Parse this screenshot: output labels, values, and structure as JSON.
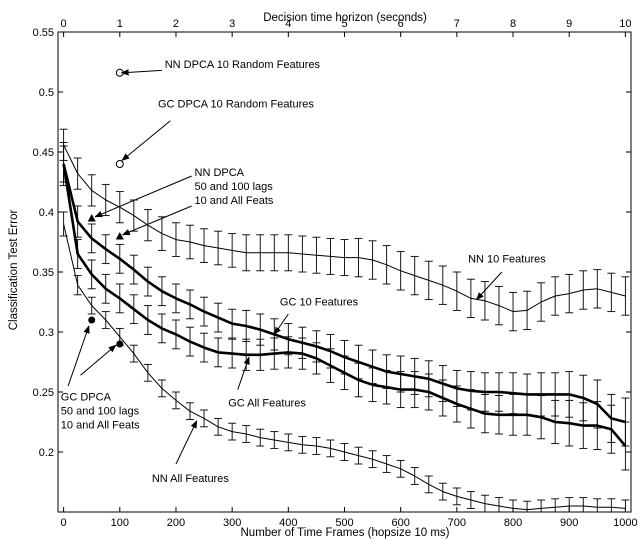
{
  "chart_data": {
    "type": "line",
    "title": "",
    "xlabel": "Number of Time Frames (hopsize 10 ms)",
    "ylabel": "Classification Test Error",
    "x2label": "Decision time horizon (seconds)",
    "xlim": [
      -10,
      1010
    ],
    "ylim": [
      0.15,
      0.55
    ],
    "x2lim": [
      -0.1,
      10.1
    ],
    "xticks": [
      0,
      100,
      200,
      300,
      400,
      500,
      600,
      700,
      800,
      900,
      1000
    ],
    "yticks": [
      0.2,
      0.25,
      0.3,
      0.35,
      0.4,
      0.45,
      0.5,
      0.55
    ],
    "x2ticks": [
      0,
      1,
      2,
      3,
      4,
      5,
      6,
      7,
      8,
      9,
      10
    ],
    "grid": false,
    "legend": "none",
    "series": [
      {
        "name": "NN 10 Features",
        "style": "thin",
        "x": [
          0,
          25,
          50,
          75,
          100,
          125,
          150,
          175,
          200,
          225,
          250,
          275,
          300,
          325,
          350,
          375,
          400,
          425,
          450,
          475,
          500,
          525,
          550,
          575,
          600,
          625,
          650,
          675,
          700,
          725,
          750,
          775,
          800,
          825,
          850,
          875,
          900,
          925,
          950,
          975,
          1000
        ],
        "y": [
          0.456,
          0.432,
          0.418,
          0.41,
          0.404,
          0.397,
          0.389,
          0.382,
          0.377,
          0.375,
          0.372,
          0.37,
          0.368,
          0.366,
          0.366,
          0.366,
          0.366,
          0.365,
          0.364,
          0.363,
          0.362,
          0.362,
          0.36,
          0.356,
          0.351,
          0.347,
          0.343,
          0.339,
          0.334,
          0.328,
          0.326,
          0.322,
          0.317,
          0.318,
          0.325,
          0.33,
          0.332,
          0.335,
          0.336,
          0.333,
          0.33
        ],
        "err": [
          0.013,
          0.013,
          0.013,
          0.013,
          0.013,
          0.013,
          0.013,
          0.014,
          0.014,
          0.014,
          0.014,
          0.014,
          0.014,
          0.015,
          0.015,
          0.015,
          0.015,
          0.015,
          0.015,
          0.015,
          0.015,
          0.016,
          0.016,
          0.016,
          0.016,
          0.016,
          0.016,
          0.016,
          0.016,
          0.016,
          0.016,
          0.016,
          0.016,
          0.016,
          0.016,
          0.016,
          0.016,
          0.016,
          0.016,
          0.016,
          0.016
        ]
      },
      {
        "name": "GC 10 Features",
        "style": "thick",
        "x": [
          0,
          25,
          50,
          75,
          100,
          125,
          150,
          175,
          200,
          225,
          250,
          275,
          300,
          325,
          350,
          375,
          400,
          425,
          450,
          475,
          500,
          525,
          550,
          575,
          600,
          625,
          650,
          675,
          700,
          725,
          750,
          775,
          800,
          825,
          850,
          875,
          900,
          925,
          950,
          975,
          1000
        ],
        "y": [
          0.44,
          0.392,
          0.378,
          0.369,
          0.361,
          0.352,
          0.342,
          0.334,
          0.328,
          0.323,
          0.317,
          0.312,
          0.307,
          0.305,
          0.302,
          0.298,
          0.294,
          0.291,
          0.288,
          0.284,
          0.279,
          0.275,
          0.271,
          0.267,
          0.265,
          0.263,
          0.261,
          0.257,
          0.253,
          0.251,
          0.25,
          0.25,
          0.249,
          0.248,
          0.248,
          0.248,
          0.248,
          0.245,
          0.24,
          0.228,
          0.225
        ],
        "err": [
          0.015,
          0.013,
          0.012,
          0.012,
          0.012,
          0.012,
          0.012,
          0.012,
          0.012,
          0.012,
          0.012,
          0.012,
          0.012,
          0.013,
          0.013,
          0.013,
          0.013,
          0.013,
          0.013,
          0.014,
          0.014,
          0.014,
          0.014,
          0.014,
          0.015,
          0.015,
          0.015,
          0.015,
          0.015,
          0.016,
          0.016,
          0.016,
          0.017,
          0.017,
          0.018,
          0.018,
          0.019,
          0.019,
          0.02,
          0.02,
          0.02
        ]
      },
      {
        "name": "GC All Features",
        "style": "thick",
        "x": [
          0,
          25,
          50,
          75,
          100,
          125,
          150,
          175,
          200,
          225,
          250,
          275,
          300,
          325,
          350,
          375,
          400,
          425,
          450,
          475,
          500,
          525,
          550,
          575,
          600,
          625,
          650,
          675,
          700,
          725,
          750,
          775,
          800,
          825,
          850,
          875,
          900,
          925,
          950,
          975,
          1000
        ],
        "y": [
          0.44,
          0.365,
          0.348,
          0.336,
          0.328,
          0.319,
          0.31,
          0.303,
          0.298,
          0.292,
          0.287,
          0.283,
          0.282,
          0.281,
          0.281,
          0.282,
          0.283,
          0.282,
          0.278,
          0.272,
          0.266,
          0.26,
          0.256,
          0.254,
          0.252,
          0.252,
          0.25,
          0.245,
          0.24,
          0.236,
          0.232,
          0.231,
          0.231,
          0.231,
          0.229,
          0.225,
          0.224,
          0.222,
          0.222,
          0.219,
          0.205
        ],
        "err": [
          0.018,
          0.012,
          0.012,
          0.012,
          0.012,
          0.012,
          0.012,
          0.012,
          0.012,
          0.012,
          0.012,
          0.012,
          0.012,
          0.013,
          0.013,
          0.013,
          0.013,
          0.013,
          0.013,
          0.014,
          0.014,
          0.014,
          0.014,
          0.014,
          0.015,
          0.015,
          0.015,
          0.015,
          0.015,
          0.016,
          0.016,
          0.016,
          0.017,
          0.017,
          0.018,
          0.018,
          0.019,
          0.019,
          0.02,
          0.02,
          0.02
        ]
      },
      {
        "name": "NN All Features",
        "style": "thin",
        "x": [
          0,
          25,
          50,
          75,
          100,
          125,
          150,
          175,
          200,
          225,
          250,
          275,
          300,
          325,
          350,
          375,
          400,
          425,
          450,
          475,
          500,
          525,
          550,
          575,
          600,
          625,
          650,
          675,
          700,
          725,
          750,
          775,
          800,
          825,
          850,
          875,
          900,
          925,
          950,
          975,
          1000
        ],
        "y": [
          0.39,
          0.339,
          0.322,
          0.31,
          0.296,
          0.282,
          0.266,
          0.253,
          0.243,
          0.234,
          0.228,
          0.221,
          0.217,
          0.215,
          0.212,
          0.21,
          0.208,
          0.206,
          0.205,
          0.203,
          0.2,
          0.197,
          0.194,
          0.19,
          0.186,
          0.18,
          0.173,
          0.167,
          0.163,
          0.16,
          0.157,
          0.155,
          0.153,
          0.152,
          0.153,
          0.154,
          0.155,
          0.155,
          0.154,
          0.154,
          0.153
        ],
        "err": [
          0.01,
          0.008,
          0.007,
          0.007,
          0.007,
          0.007,
          0.007,
          0.007,
          0.007,
          0.007,
          0.007,
          0.007,
          0.007,
          0.007,
          0.007,
          0.007,
          0.007,
          0.007,
          0.007,
          0.007,
          0.007,
          0.007,
          0.007,
          0.007,
          0.007,
          0.007,
          0.007,
          0.007,
          0.007,
          0.007,
          0.007,
          0.007,
          0.007,
          0.007,
          0.007,
          0.007,
          0.007,
          0.007,
          0.007,
          0.007,
          0.007
        ]
      }
    ],
    "points": [
      {
        "name": "NN DPCA 10 Random Features",
        "x": 100,
        "y": 0.516,
        "marker": "open-circle"
      },
      {
        "name": "GC DPCA 10 Random Features",
        "x": 100,
        "y": 0.44,
        "marker": "open-circle"
      },
      {
        "name": "NN DPCA 50 lags",
        "x": 50,
        "y": 0.395,
        "marker": "filled-triangle"
      },
      {
        "name": "NN DPCA 100 lags",
        "x": 100,
        "y": 0.38,
        "marker": "filled-triangle"
      },
      {
        "name": "GC DPCA 50 lags",
        "x": 50,
        "y": 0.31,
        "marker": "filled-circle"
      },
      {
        "name": "GC DPCA 100 lags",
        "x": 100,
        "y": 0.29,
        "marker": "filled-circle"
      }
    ],
    "annotations": [
      {
        "lines": [
          "NN DPCA 10 Random Features"
        ],
        "anchor": "start",
        "text_xy": [
          180,
          0.52
        ],
        "arrow_from": [
          175,
          0.518
        ],
        "arrow_to": [
          103,
          0.516
        ]
      },
      {
        "lines": [
          "GC DPCA 10 Random Features"
        ],
        "anchor": "start",
        "text_xy": [
          168,
          0.487
        ],
        "arrow_from": [
          190,
          0.476
        ],
        "arrow_to": [
          104,
          0.443
        ]
      },
      {
        "lines": [
          "NN DPCA",
          "50 and 100 lags",
          "10 and All Feats"
        ],
        "anchor": "start",
        "text_xy": [
          233,
          0.43
        ],
        "arrow_from": [
          228,
          0.43
        ],
        "arrow_to": [
          56,
          0.396
        ],
        "arrow2_from": [
          228,
          0.405
        ],
        "arrow2_to": [
          105,
          0.381
        ]
      },
      {
        "lines": [
          "GC DPCA",
          "50 and 100 lags",
          "10 and All Feats"
        ],
        "anchor": "start",
        "text_xy": [
          -5,
          0.243
        ],
        "arrow_from": [
          8,
          0.255
        ],
        "arrow_to": [
          45,
          0.305
        ],
        "arrow2_from": [
          30,
          0.264
        ],
        "arrow2_to": [
          93,
          0.289
        ]
      },
      {
        "lines": [
          "NN 10 Features"
        ],
        "anchor": "start",
        "text_xy": [
          720,
          0.358
        ],
        "arrow_from": [
          780,
          0.35
        ],
        "arrow_to": [
          735,
          0.327
        ]
      },
      {
        "lines": [
          "GC 10 Features"
        ],
        "anchor": "start",
        "text_xy": [
          385,
          0.322
        ],
        "arrow_from": [
          400,
          0.315
        ],
        "arrow_to": [
          375,
          0.298
        ]
      },
      {
        "lines": [
          "GC All Features"
        ],
        "anchor": "start",
        "text_xy": [
          293,
          0.238
        ],
        "arrow_from": [
          310,
          0.252
        ],
        "arrow_to": [
          330,
          0.279
        ]
      },
      {
        "lines": [
          "NN All Features"
        ],
        "anchor": "start",
        "text_xy": [
          157,
          0.175
        ],
        "arrow_from": [
          200,
          0.19
        ],
        "arrow_to": [
          237,
          0.226
        ]
      }
    ]
  }
}
